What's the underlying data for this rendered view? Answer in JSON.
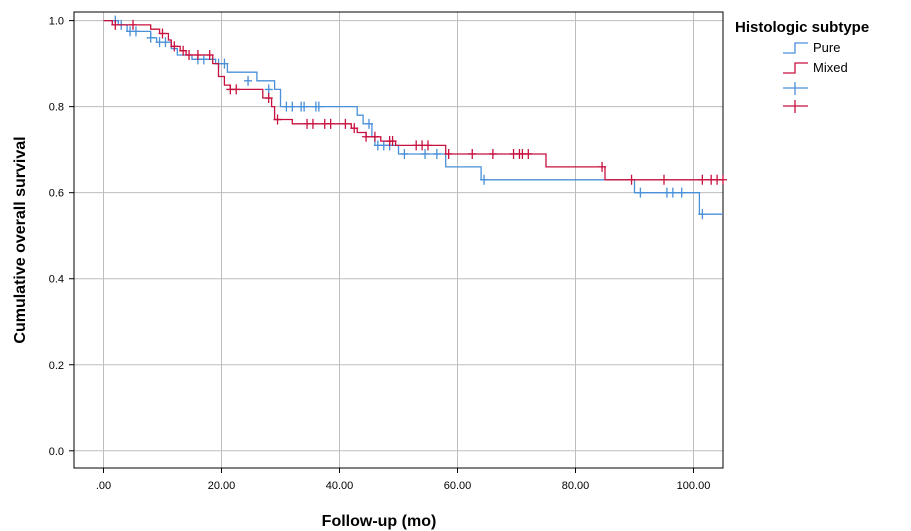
{
  "chart_data": {
    "type": "line",
    "subtype": "kaplan-meier-step",
    "xlabel": "Follow-up (mo)",
    "ylabel": "Cumulative overall survival",
    "xlim": [
      -5,
      105
    ],
    "ylim": [
      -0.04,
      1.02
    ],
    "x_ticks": [
      0,
      20,
      40,
      60,
      80,
      100
    ],
    "x_tick_labels": [
      ".00",
      "20.00",
      "40.00",
      "60.00",
      "80.00",
      "100.00"
    ],
    "y_ticks": [
      0.0,
      0.2,
      0.4,
      0.6,
      0.8,
      1.0
    ],
    "y_tick_labels": [
      "0.0",
      "0.2",
      "0.4",
      "0.6",
      "0.8",
      "1.0"
    ],
    "grid": true,
    "legend": {
      "title": "Histologic subtype",
      "position": "right",
      "entries": [
        "Pure",
        "Mixed",
        "",
        ""
      ]
    },
    "series": [
      {
        "name": "Pure",
        "color": "#4a90d9",
        "steps": [
          [
            0,
            1.0
          ],
          [
            2.5,
            0.99
          ],
          [
            4,
            0.975
          ],
          [
            8,
            0.96
          ],
          [
            9,
            0.95
          ],
          [
            11.5,
            0.935
          ],
          [
            12.5,
            0.92
          ],
          [
            15,
            0.91
          ],
          [
            19,
            0.9
          ],
          [
            21,
            0.88
          ],
          [
            26,
            0.86
          ],
          [
            29,
            0.84
          ],
          [
            30,
            0.8
          ],
          [
            43,
            0.78
          ],
          [
            44,
            0.76
          ],
          [
            45.5,
            0.73
          ],
          [
            46,
            0.71
          ],
          [
            50,
            0.69
          ],
          [
            58,
            0.66
          ],
          [
            64,
            0.63
          ],
          [
            85,
            0.63
          ],
          [
            90,
            0.6
          ],
          [
            101,
            0.55
          ],
          [
            105,
            0.55
          ]
        ],
        "censored": [
          [
            2,
            1.0
          ],
          [
            3,
            0.99
          ],
          [
            4.5,
            0.975
          ],
          [
            5.5,
            0.975
          ],
          [
            8,
            0.96
          ],
          [
            9.5,
            0.95
          ],
          [
            10.5,
            0.95
          ],
          [
            16,
            0.91
          ],
          [
            17,
            0.91
          ],
          [
            19.5,
            0.9
          ],
          [
            20.5,
            0.9
          ],
          [
            24.5,
            0.86
          ],
          [
            28,
            0.84
          ],
          [
            31,
            0.8
          ],
          [
            32,
            0.8
          ],
          [
            33.5,
            0.8
          ],
          [
            34,
            0.8
          ],
          [
            36,
            0.8
          ],
          [
            36.5,
            0.8
          ],
          [
            45,
            0.76
          ],
          [
            46.5,
            0.71
          ],
          [
            47.5,
            0.71
          ],
          [
            48.5,
            0.71
          ],
          [
            51,
            0.69
          ],
          [
            54.5,
            0.69
          ],
          [
            56.5,
            0.69
          ],
          [
            64.5,
            0.63
          ],
          [
            91,
            0.6
          ],
          [
            95.5,
            0.6
          ],
          [
            96.5,
            0.6
          ],
          [
            98,
            0.6
          ],
          [
            101.5,
            0.55
          ]
        ]
      },
      {
        "name": "Mixed",
        "color": "#c8103e",
        "steps": [
          [
            0,
            1.0
          ],
          [
            1.5,
            0.99
          ],
          [
            8,
            0.98
          ],
          [
            9.5,
            0.97
          ],
          [
            11,
            0.955
          ],
          [
            11.5,
            0.94
          ],
          [
            13,
            0.93
          ],
          [
            14,
            0.92
          ],
          [
            18.5,
            0.9
          ],
          [
            19.5,
            0.87
          ],
          [
            20.5,
            0.85
          ],
          [
            21.5,
            0.84
          ],
          [
            27,
            0.82
          ],
          [
            28.5,
            0.8
          ],
          [
            29,
            0.77
          ],
          [
            32,
            0.76
          ],
          [
            42,
            0.75
          ],
          [
            43,
            0.74
          ],
          [
            44.5,
            0.73
          ],
          [
            47,
            0.72
          ],
          [
            49.5,
            0.71
          ],
          [
            58,
            0.69
          ],
          [
            75,
            0.66
          ],
          [
            85,
            0.63
          ],
          [
            105,
            0.63
          ]
        ],
        "censored": [
          [
            2,
            0.99
          ],
          [
            5,
            0.99
          ],
          [
            10,
            0.97
          ],
          [
            12,
            0.94
          ],
          [
            13.5,
            0.93
          ],
          [
            14.5,
            0.92
          ],
          [
            16,
            0.92
          ],
          [
            18,
            0.92
          ],
          [
            21.5,
            0.84
          ],
          [
            22.5,
            0.84
          ],
          [
            28,
            0.82
          ],
          [
            29.5,
            0.77
          ],
          [
            34.5,
            0.76
          ],
          [
            35.5,
            0.76
          ],
          [
            37.5,
            0.76
          ],
          [
            38.5,
            0.76
          ],
          [
            41,
            0.76
          ],
          [
            42.5,
            0.75
          ],
          [
            44.5,
            0.73
          ],
          [
            46,
            0.73
          ],
          [
            48.5,
            0.72
          ],
          [
            49,
            0.72
          ],
          [
            53,
            0.71
          ],
          [
            54,
            0.71
          ],
          [
            55,
            0.71
          ],
          [
            58.5,
            0.69
          ],
          [
            62.5,
            0.69
          ],
          [
            66,
            0.69
          ],
          [
            69.5,
            0.69
          ],
          [
            70.5,
            0.69
          ],
          [
            71,
            0.69
          ],
          [
            72,
            0.69
          ],
          [
            84.5,
            0.66
          ],
          [
            89.5,
            0.63
          ],
          [
            95,
            0.63
          ],
          [
            101.5,
            0.63
          ],
          [
            103,
            0.63
          ],
          [
            104,
            0.63
          ],
          [
            105,
            0.63
          ]
        ]
      }
    ]
  }
}
